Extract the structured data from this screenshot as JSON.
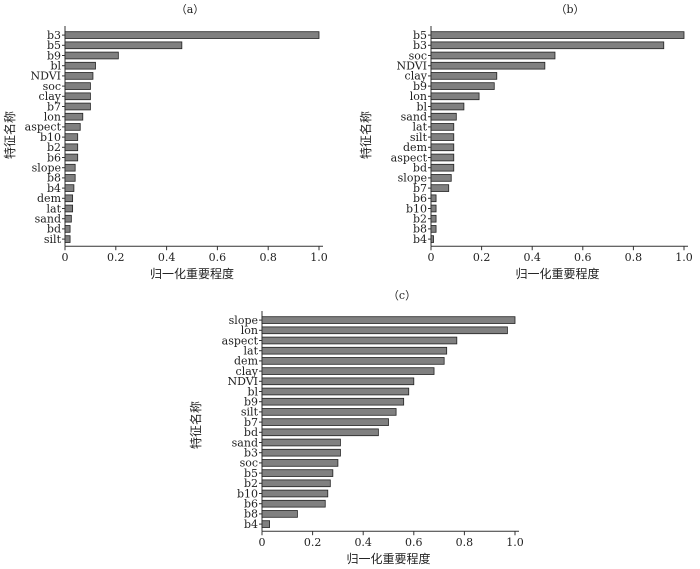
{
  "colors": {
    "bar_fill": "#808080",
    "bar_stroke": "#222222",
    "axis": "#333333"
  },
  "chart_data": [
    {
      "type": "bar",
      "orientation": "horizontal",
      "title": "（a）",
      "xlabel": "归一化重要程度",
      "ylabel": "特征名称",
      "xlim": [
        0,
        1.0
      ],
      "xticks": [
        "0",
        "0.2",
        "0.4",
        "0.6",
        "0.8",
        "1.0"
      ],
      "grid": false,
      "categories": [
        "b3",
        "b5",
        "b9",
        "bl",
        "NDVI",
        "soc",
        "clay",
        "b7",
        "lon",
        "aspect",
        "b10",
        "b2",
        "b6",
        "slope",
        "b8",
        "b4",
        "dem",
        "lat",
        "sand",
        "bd",
        "silt"
      ],
      "values": [
        1.0,
        0.46,
        0.21,
        0.12,
        0.11,
        0.1,
        0.1,
        0.1,
        0.07,
        0.06,
        0.05,
        0.05,
        0.05,
        0.04,
        0.04,
        0.035,
        0.03,
        0.03,
        0.025,
        0.02,
        0.02
      ]
    },
    {
      "type": "bar",
      "orientation": "horizontal",
      "title": "（b）",
      "xlabel": "归一化重要程度",
      "ylabel": "特征名称",
      "xlim": [
        0,
        1.0
      ],
      "xticks": [
        "0",
        "0.2",
        "0.4",
        "0.6",
        "0.8",
        "1.0"
      ],
      "grid": false,
      "categories": [
        "b5",
        "b3",
        "soc",
        "NDVI",
        "clay",
        "b9",
        "lon",
        "bl",
        "sand",
        "lat",
        "silt",
        "dem",
        "aspect",
        "bd",
        "slope",
        "b7",
        "b6",
        "b10",
        "b2",
        "b8",
        "b4"
      ],
      "values": [
        1.0,
        0.92,
        0.49,
        0.45,
        0.26,
        0.25,
        0.19,
        0.13,
        0.1,
        0.09,
        0.09,
        0.09,
        0.09,
        0.09,
        0.08,
        0.07,
        0.02,
        0.02,
        0.02,
        0.02,
        0.01
      ]
    },
    {
      "type": "bar",
      "orientation": "horizontal",
      "title": "（c）",
      "xlabel": "归一化重要程度",
      "ylabel": "特征名称",
      "xlim": [
        0,
        1.0
      ],
      "xticks": [
        "0",
        "0.2",
        "0.4",
        "0.6",
        "0.8",
        "1.0"
      ],
      "grid": false,
      "categories": [
        "slope",
        "lon",
        "aspect",
        "lat",
        "dem",
        "clay",
        "NDVI",
        "bl",
        "b9",
        "silt",
        "b7",
        "bd",
        "sand",
        "b3",
        "soc",
        "b5",
        "b2",
        "b10",
        "b6",
        "b8",
        "b4"
      ],
      "values": [
        1.0,
        0.97,
        0.77,
        0.73,
        0.72,
        0.68,
        0.6,
        0.58,
        0.56,
        0.53,
        0.5,
        0.46,
        0.31,
        0.31,
        0.3,
        0.28,
        0.27,
        0.26,
        0.25,
        0.14,
        0.03
      ]
    }
  ]
}
